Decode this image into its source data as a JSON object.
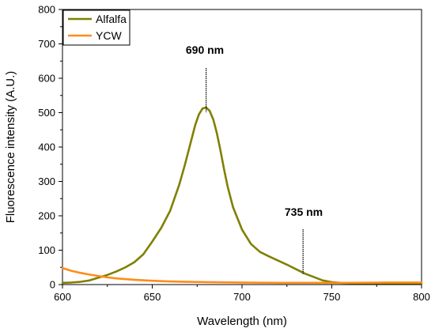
{
  "chart_data": {
    "type": "line",
    "title": "",
    "xlabel": "Wavelength (nm)",
    "ylabel": "Fluorescence intensity (A.U.)",
    "xlim": [
      600,
      800
    ],
    "ylim": [
      0,
      800
    ],
    "x_ticks": [
      600,
      650,
      700,
      750,
      800
    ],
    "y_ticks": [
      0,
      100,
      200,
      300,
      400,
      500,
      600,
      700,
      800
    ],
    "grid": false,
    "legend_position": "top-left",
    "series": [
      {
        "name": "Alfalfa",
        "color": "#808000",
        "x": [
          600,
          605,
          610,
          615,
          620,
          625,
          630,
          635,
          640,
          645,
          650,
          655,
          660,
          665,
          668,
          670,
          672,
          674,
          676,
          678,
          680,
          682,
          684,
          686,
          688,
          690,
          692,
          695,
          700,
          705,
          710,
          715,
          720,
          725,
          730,
          735,
          740,
          745,
          750,
          755,
          760,
          765,
          770,
          780,
          790,
          800
        ],
        "y": [
          5,
          6,
          8,
          12,
          20,
          28,
          38,
          50,
          65,
          88,
          125,
          165,
          215,
          290,
          345,
          385,
          425,
          465,
          495,
          512,
          515,
          505,
          480,
          440,
          390,
          335,
          285,
          225,
          160,
          118,
          95,
          82,
          70,
          58,
          45,
          32,
          22,
          12,
          7,
          5,
          4,
          4,
          4,
          4,
          4,
          4
        ]
      },
      {
        "name": "YCW",
        "color": "#ff8c1a",
        "x": [
          600,
          605,
          610,
          615,
          620,
          625,
          630,
          640,
          650,
          660,
          670,
          680,
          700,
          720,
          740,
          760,
          780,
          800
        ],
        "y": [
          48,
          40,
          34,
          29,
          25,
          21,
          18,
          14,
          11,
          9,
          8,
          7,
          6,
          5,
          5,
          5,
          6,
          6
        ]
      }
    ],
    "annotations": [
      {
        "text": "690 nm",
        "x": 680
      },
      {
        "text": "735 nm",
        "x": 734
      }
    ]
  }
}
